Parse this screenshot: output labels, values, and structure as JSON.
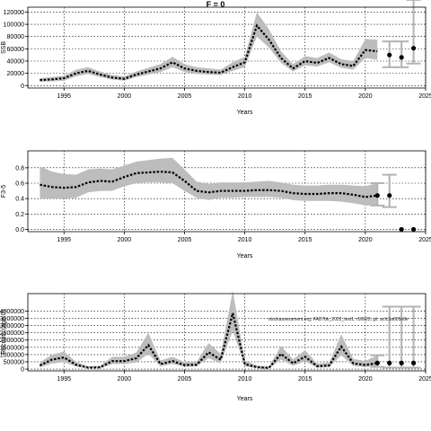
{
  "figure": {
    "title": "F = 0",
    "annotation": "stockassessment.org, FAD7bk_2022_test1, r16023, git: acfc3a605e8e"
  },
  "chart_data": [
    {
      "type": "line",
      "title": "F = 0",
      "xlabel": "Years",
      "ylabel": "SSB",
      "xlim": [
        1992,
        2025
      ],
      "ylim": [
        -4000,
        128000
      ],
      "grid": true,
      "x_ticks": [
        1995,
        2000,
        2005,
        2010,
        2015,
        2020,
        2025
      ],
      "x_tick_labels": [
        "1995",
        "2000",
        "2005",
        "2010",
        "2015",
        "2020",
        "2025"
      ],
      "y_ticks": [
        0,
        20000,
        40000,
        60000,
        80000,
        100000,
        120000
      ],
      "y_tick_labels": [
        "0",
        "20000",
        "40000",
        "60000",
        "80000",
        "100000",
        "120000"
      ],
      "history": {
        "years": [
          1993,
          1994,
          1995,
          1996,
          1997,
          1998,
          1999,
          2000,
          2001,
          2002,
          2003,
          2004,
          2005,
          2006,
          2007,
          2008,
          2009,
          2010,
          2011,
          2012,
          2013,
          2014,
          2015,
          2016,
          2017,
          2018,
          2019,
          2020,
          2021
        ],
        "estimate": [
          9000,
          10000,
          12000,
          20000,
          24000,
          18000,
          13000,
          11000,
          18000,
          23000,
          28000,
          38000,
          28000,
          24000,
          22000,
          21000,
          30000,
          38000,
          98000,
          75000,
          45000,
          28000,
          40000,
          37000,
          45000,
          35000,
          32000,
          58000,
          56000
        ],
        "lower": [
          6000,
          7000,
          8000,
          15000,
          19000,
          14000,
          10000,
          8000,
          14000,
          18000,
          22000,
          30000,
          22000,
          19000,
          18000,
          17000,
          24000,
          30000,
          80000,
          62000,
          37000,
          23000,
          33000,
          31000,
          38000,
          29000,
          26000,
          45000,
          42000
        ],
        "upper": [
          12000,
          14000,
          16000,
          26000,
          30000,
          23000,
          17000,
          15000,
          23000,
          29000,
          35000,
          47000,
          35000,
          30000,
          28000,
          26000,
          38000,
          47000,
          120000,
          92000,
          56000,
          35000,
          48000,
          45000,
          54000,
          43000,
          40000,
          76000,
          75000
        ]
      },
      "forecast": {
        "years": [
          2022,
          2023,
          2024
        ],
        "median": [
          50000,
          46000,
          61000
        ],
        "lower": [
          30000,
          30000,
          36000
        ],
        "upper": [
          72000,
          72000,
          140000
        ]
      }
    },
    {
      "type": "line",
      "xlabel": "Years",
      "ylabel": "F3-5",
      "xlim": [
        1992,
        2025
      ],
      "ylim": [
        -0.03,
        1.02
      ],
      "grid": true,
      "x_ticks": [
        1995,
        2000,
        2005,
        2010,
        2015,
        2020,
        2025
      ],
      "x_tick_labels": [
        "1995",
        "2000",
        "2005",
        "2010",
        "2015",
        "2020",
        "2025"
      ],
      "y_ticks": [
        0,
        0.2,
        0.4,
        0.6,
        0.8
      ],
      "y_tick_labels": [
        "0.0",
        "0.2",
        "0.4",
        "0.6",
        "0.8"
      ],
      "history": {
        "years": [
          1993,
          1994,
          1995,
          1996,
          1997,
          1998,
          1999,
          2000,
          2001,
          2002,
          2003,
          2004,
          2005,
          2006,
          2007,
          2008,
          2009,
          2010,
          2011,
          2012,
          2013,
          2014,
          2015,
          2016,
          2017,
          2018,
          2019,
          2020,
          2021
        ],
        "estimate": [
          0.58,
          0.55,
          0.54,
          0.55,
          0.61,
          0.63,
          0.62,
          0.68,
          0.73,
          0.74,
          0.75,
          0.74,
          0.63,
          0.5,
          0.48,
          0.5,
          0.5,
          0.5,
          0.51,
          0.51,
          0.5,
          0.47,
          0.46,
          0.46,
          0.47,
          0.47,
          0.45,
          0.42,
          0.44
        ],
        "lower": [
          0.4,
          0.4,
          0.4,
          0.41,
          0.48,
          0.5,
          0.5,
          0.56,
          0.6,
          0.61,
          0.61,
          0.6,
          0.5,
          0.41,
          0.38,
          0.41,
          0.41,
          0.42,
          0.42,
          0.42,
          0.41,
          0.38,
          0.37,
          0.37,
          0.37,
          0.36,
          0.34,
          0.31,
          0.31
        ],
        "upper": [
          0.82,
          0.75,
          0.72,
          0.71,
          0.78,
          0.79,
          0.78,
          0.83,
          0.88,
          0.9,
          0.92,
          0.93,
          0.78,
          0.62,
          0.59,
          0.61,
          0.61,
          0.61,
          0.62,
          0.63,
          0.61,
          0.58,
          0.57,
          0.57,
          0.58,
          0.58,
          0.57,
          0.56,
          0.6
        ]
      },
      "forecast": {
        "years": [
          2021,
          2022,
          2023,
          2024
        ],
        "median": [
          0.44,
          0.44,
          0.0,
          0.0
        ],
        "lower": [
          0.31,
          0.29,
          0.0,
          0.0
        ],
        "upper": [
          0.6,
          0.71,
          0.0,
          0.0
        ]
      }
    },
    {
      "type": "line",
      "xlabel": "Years",
      "ylabel": "Recruits (age 0)",
      "xlim": [
        1992,
        2025
      ],
      "ylim": [
        -120000,
        5200000
      ],
      "grid": true,
      "x_ticks": [
        1995,
        2000,
        2005,
        2010,
        2015,
        2020,
        2025
      ],
      "x_tick_labels": [
        "1995",
        "2000",
        "2005",
        "2010",
        "2015",
        "2020",
        "2025"
      ],
      "y_ticks": [
        0,
        500000,
        1000000,
        1500000,
        2000000,
        2500000,
        3000000,
        3500000,
        4000000
      ],
      "y_tick_labels": [
        "0",
        "500000",
        "1000000",
        "1500000",
        "2000000",
        "2500000",
        "3000000",
        "3500000",
        "4000000"
      ],
      "history": {
        "years": [
          1993,
          1994,
          1995,
          1996,
          1997,
          1998,
          1999,
          2000,
          2001,
          2002,
          2003,
          2004,
          2005,
          2006,
          2007,
          2008,
          2009,
          2010,
          2011,
          2012,
          2013,
          2014,
          2015,
          2016,
          2017,
          2018,
          2019,
          2020,
          2021
        ],
        "estimate": [
          250000,
          650000,
          800000,
          300000,
          100000,
          120000,
          550000,
          550000,
          750000,
          1650000,
          350000,
          550000,
          280000,
          300000,
          1150000,
          650000,
          3850000,
          350000,
          130000,
          80000,
          1050000,
          400000,
          850000,
          200000,
          250000,
          1550000,
          400000,
          280000,
          420000
        ],
        "lower": [
          130000,
          380000,
          480000,
          170000,
          50000,
          60000,
          350000,
          350000,
          450000,
          1050000,
          200000,
          350000,
          160000,
          180000,
          750000,
          400000,
          2650000,
          200000,
          60000,
          30000,
          650000,
          230000,
          530000,
          100000,
          130000,
          950000,
          220000,
          140000,
          180000
        ],
        "upper": [
          450000,
          1000000,
          1200000,
          500000,
          200000,
          230000,
          850000,
          850000,
          1150000,
          2500000,
          600000,
          850000,
          480000,
          500000,
          1800000,
          1050000,
          5400000,
          600000,
          250000,
          170000,
          1600000,
          680000,
          1300000,
          380000,
          450000,
          2400000,
          700000,
          560000,
          950000
        ]
      },
      "forecast": {
        "years": [
          2021,
          2022,
          2023,
          2024
        ],
        "median": [
          420000,
          420000,
          420000,
          420000
        ],
        "lower": [
          150000,
          100000,
          100000,
          100000
        ],
        "upper": [
          950000,
          4300000,
          4300000,
          4300000
        ]
      }
    }
  ]
}
